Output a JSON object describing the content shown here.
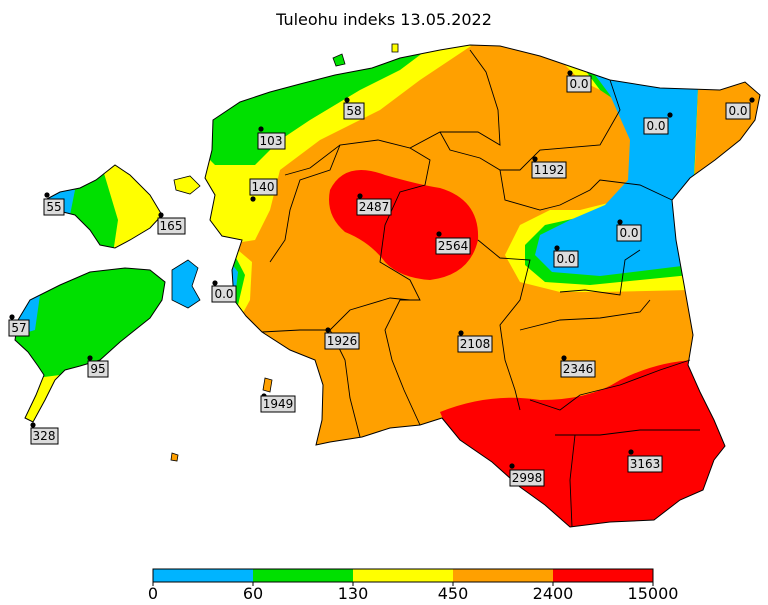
{
  "title": "Tuleohu indeks 13.05.2022",
  "colors": {
    "blue": "#00b4ff",
    "green": "#00e000",
    "yellow": "#ffff00",
    "orange": "#ffa000",
    "red": "#ff0000"
  },
  "stations": [
    {
      "id": "narva",
      "value": "0.0"
    },
    {
      "id": "johvi",
      "value": "0.0"
    },
    {
      "id": "kunda",
      "value": "0.0"
    },
    {
      "id": "kuusiku",
      "value": "58"
    },
    {
      "id": "tallinn",
      "value": "103"
    },
    {
      "id": "rakvere",
      "value": "1192"
    },
    {
      "id": "hiiumaa-w",
      "value": "55"
    },
    {
      "id": "hiiumaa-e",
      "value": "165"
    },
    {
      "id": "haapsalu",
      "value": "140"
    },
    {
      "id": "turi",
      "value": "2487"
    },
    {
      "id": "jogeva",
      "value": "2564"
    },
    {
      "id": "tiirikoja",
      "value": "0.0"
    },
    {
      "id": "mustvee",
      "value": "0.0"
    },
    {
      "id": "virtsu",
      "value": "0.0"
    },
    {
      "id": "vilsandi",
      "value": "57"
    },
    {
      "id": "kuressaare",
      "value": "95"
    },
    {
      "id": "parnu",
      "value": "1926"
    },
    {
      "id": "viljandi",
      "value": "2108"
    },
    {
      "id": "tartu",
      "value": "2346"
    },
    {
      "id": "kihnu",
      "value": "1949"
    },
    {
      "id": "sorve",
      "value": "328"
    },
    {
      "id": "valga",
      "value": "2998"
    },
    {
      "id": "voru",
      "value": "3163"
    }
  ],
  "legend": {
    "ticks": [
      "0",
      "60",
      "130",
      "450",
      "2400",
      "15000"
    ],
    "colors": [
      "#00b4ff",
      "#00e000",
      "#ffff00",
      "#ffa000",
      "#ff0000"
    ]
  }
}
